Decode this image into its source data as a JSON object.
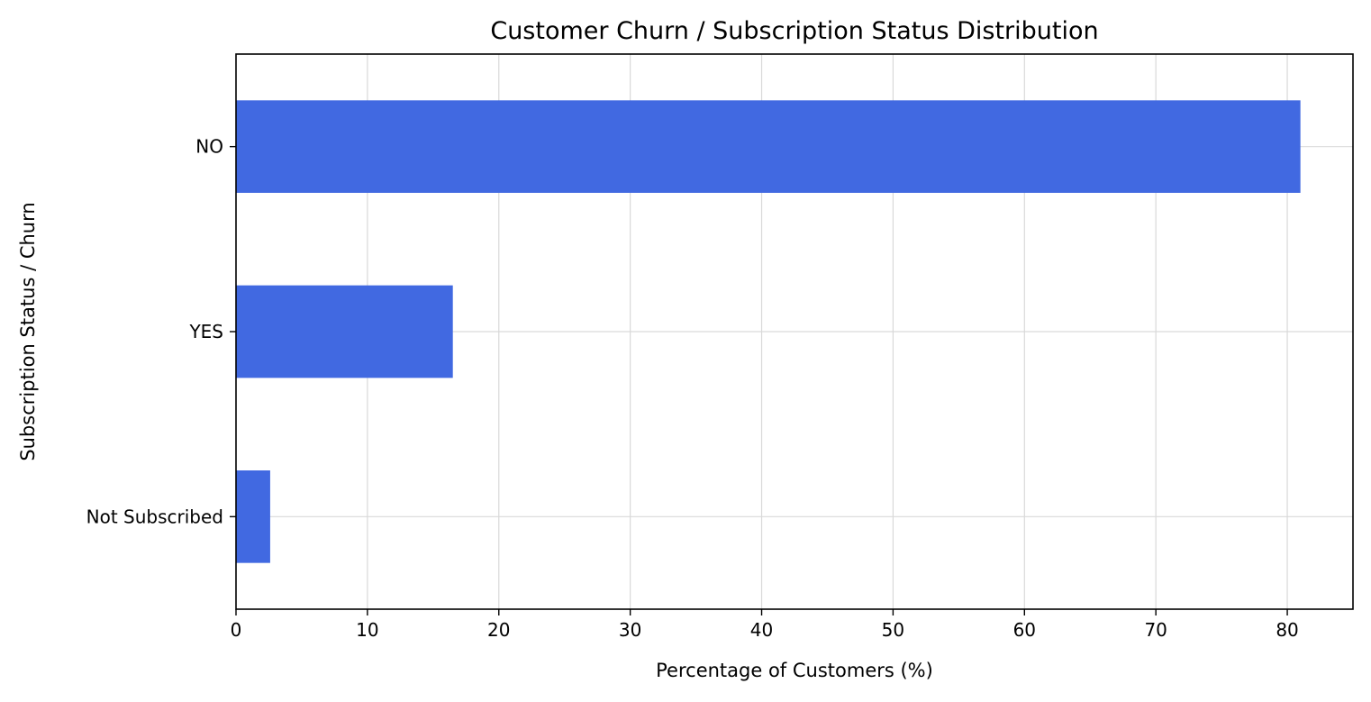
{
  "chart_data": {
    "type": "bar",
    "orientation": "horizontal",
    "title": "Customer Churn / Subscription Status Distribution",
    "xlabel": "Percentage of Customers (%)",
    "ylabel": "Subscription Status / Churn",
    "categories": [
      "NO",
      "YES",
      "Not Subscribed"
    ],
    "values": [
      81.0,
      16.5,
      2.6
    ],
    "xlim": [
      0,
      85
    ],
    "xticks": [
      0,
      10,
      20,
      30,
      40,
      50,
      60,
      70,
      80
    ],
    "grid": true,
    "legend": "none",
    "bar_color": "#4169e1"
  }
}
